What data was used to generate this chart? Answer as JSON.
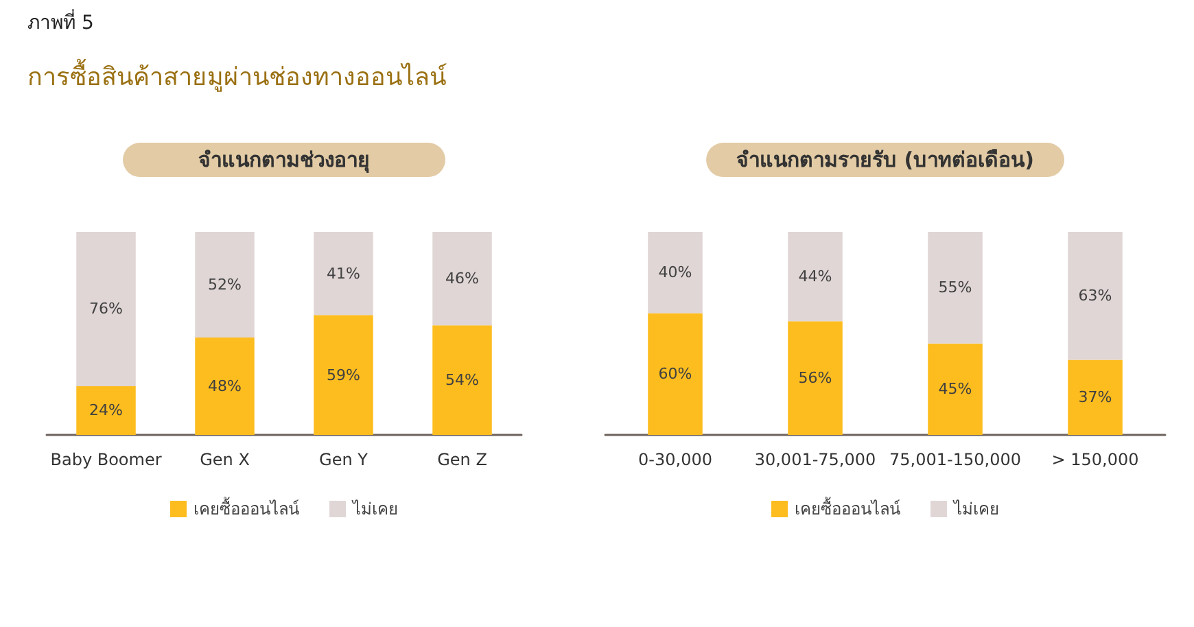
{
  "chart_data": [
    {
      "type": "bar",
      "title": "จำแนกตามช่วงอายุ",
      "annotations": [
        "ภาพที่ 5",
        "การซื้อสินค้าสายมูผ่านช่องทางออนไลน์"
      ],
      "categories": [
        "Baby Boomer",
        "Gen X",
        "Gen Y",
        "Gen Z"
      ],
      "stacked": true,
      "legend": "bottom",
      "series": [
        {
          "name": "เคยซื้อออนไลน์",
          "color": "#fdbd1f",
          "values": [
            24,
            48,
            59,
            54
          ],
          "value_labels": [
            "24%",
            "48%",
            "59%",
            "54%"
          ]
        },
        {
          "name": "ไม่เคย",
          "color": "#e0d6d6",
          "values": [
            76,
            52,
            41,
            46
          ],
          "value_labels": [
            "76%",
            "52%",
            "41%",
            "46%"
          ]
        }
      ]
    },
    {
      "type": "bar",
      "title": "จำแนกตามรายรับ (บาทต่อเดือน)",
      "categories": [
        "0-30,000",
        "30,001-75,000",
        "75,001-150,000",
        "> 150,000"
      ],
      "stacked": true,
      "legend": "bottom",
      "series": [
        {
          "name": "เคยซื้อออนไลน์",
          "color": "#fdbd1f",
          "values": [
            60,
            56,
            45,
            37
          ],
          "value_labels": [
            "60%",
            "56%",
            "45%",
            "37%"
          ]
        },
        {
          "name": "ไม่เคย",
          "color": "#e0d6d6",
          "values": [
            40,
            44,
            55,
            63
          ],
          "value_labels": [
            "40%",
            "44%",
            "55%",
            "63%"
          ]
        }
      ]
    }
  ]
}
